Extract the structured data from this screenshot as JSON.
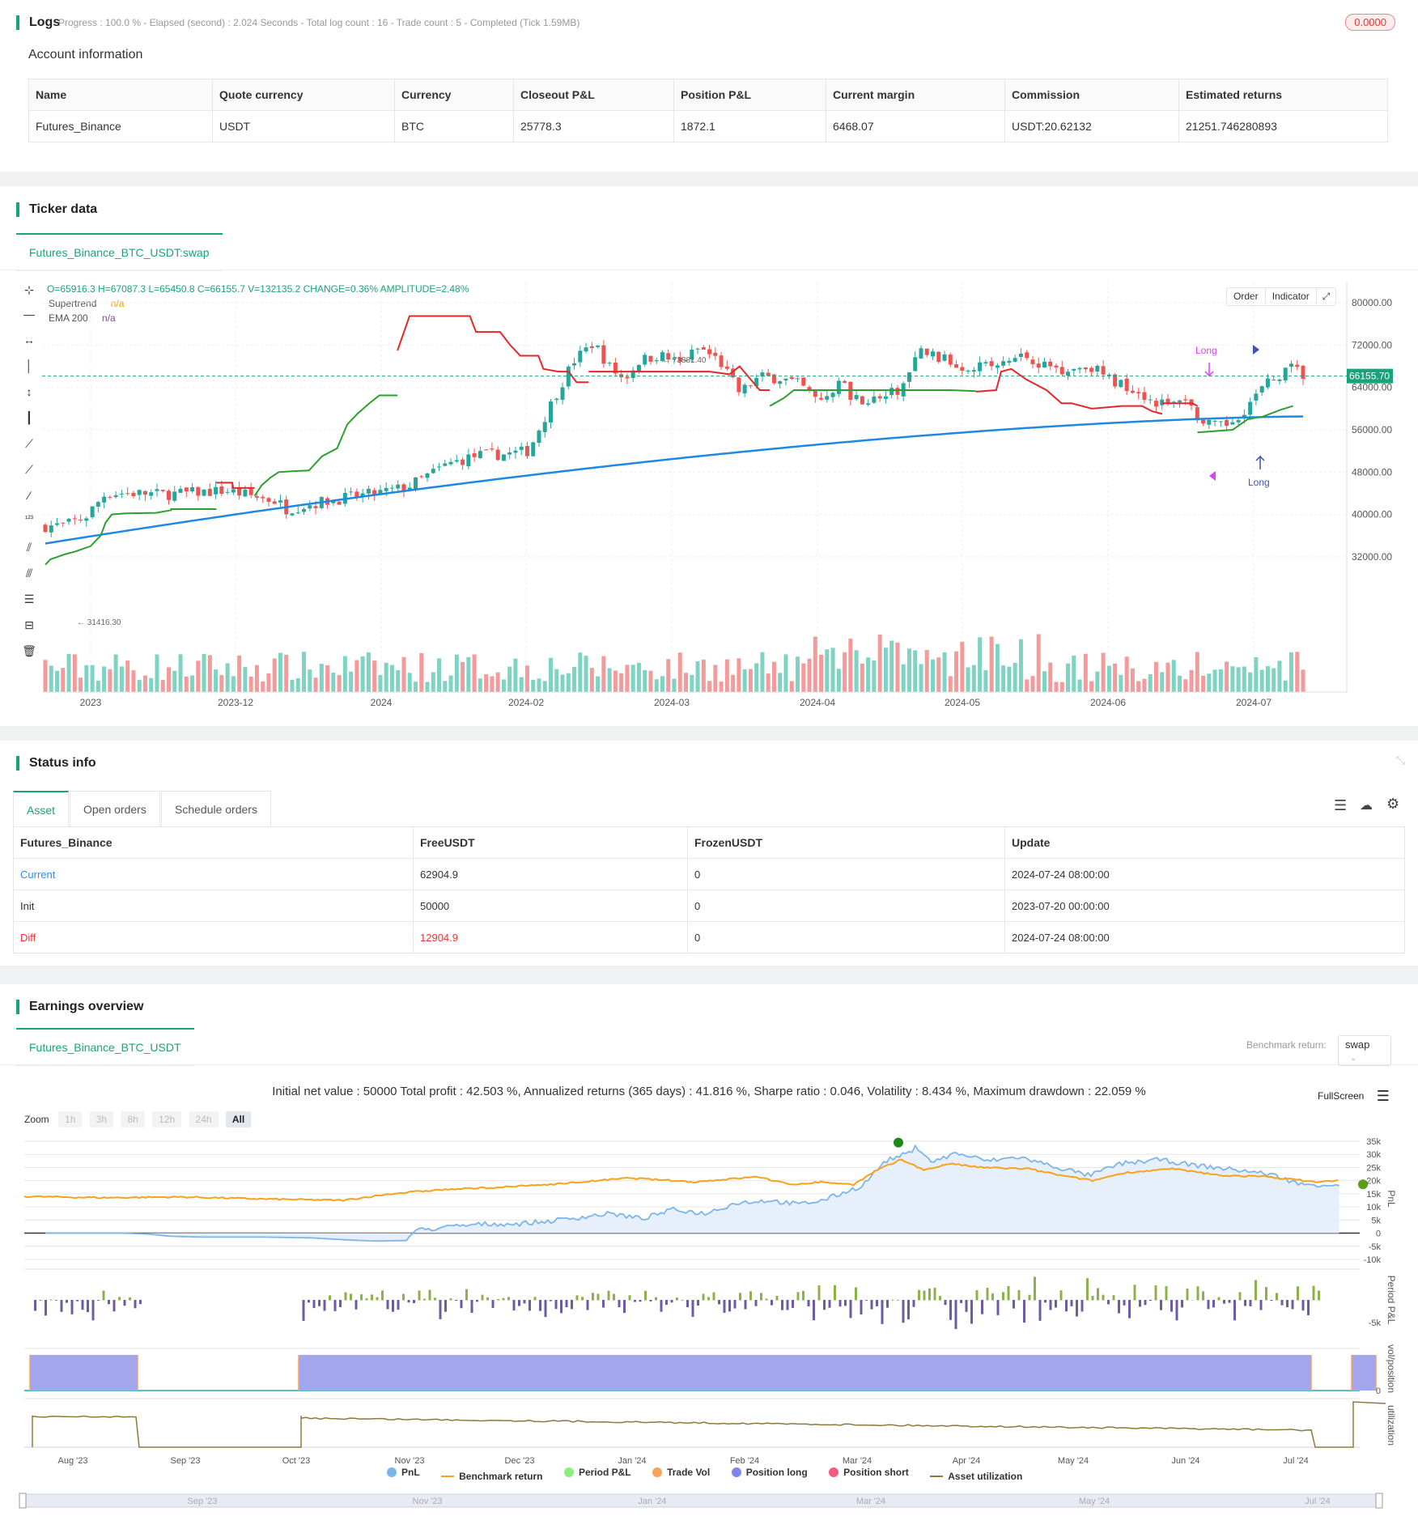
{
  "logs": {
    "title": "Logs",
    "status": "Progress : 100.0 % - Elapsed (second) : 2.024  Seconds - Total log count : 16 - Trade count : 5 - Completed (Tick 1.59MB)",
    "badge": "0.0000"
  },
  "account": {
    "title": "Account information",
    "headers": [
      "Name",
      "Quote currency",
      "Currency",
      "Closeout P&L",
      "Position P&L",
      "Current margin",
      "Commission",
      "Estimated returns"
    ],
    "row": [
      "Futures_Binance",
      "USDT",
      "BTC",
      "25778.3",
      "1872.1",
      "6468.07",
      "USDT:20.62132",
      "21251.746280893"
    ]
  },
  "ticker": {
    "title": "Ticker data",
    "tab": "Futures_Binance_BTC_USDT:swap",
    "ohlc": "O=65916.3 H=67087.3 L=65450.8 C=66155.7 V=132135.2 CHANGE=0.36% AMPLITUDE=2.48%",
    "supertrend_label": "Supertrend",
    "supertrend_val": "n/a",
    "ema_label": "EMA 200",
    "ema_val": "n/a",
    "order_btn": "Order",
    "indicator_btn": "Indicator",
    "last_price": "66155.70",
    "high_note": "73881.40",
    "low_note": "31416.30",
    "long_label": "Long",
    "y_ticks": [
      "80000.00",
      "72000.00",
      "64000.00",
      "56000.00",
      "48000.00",
      "40000.00",
      "32000.00"
    ],
    "x_ticks": [
      "2023",
      "2023-12",
      "2024",
      "2024-02",
      "2024-03",
      "2024-04",
      "2024-05",
      "2024-06",
      "2024-07"
    ],
    "colors": {
      "up": "#26a69a",
      "down": "#ef5350",
      "st_up": "#2ca02c",
      "st_down": "#e8262a",
      "ema": "#1e88e5"
    }
  },
  "status": {
    "title": "Status info",
    "tabs": [
      "Asset",
      "Open orders",
      "Schedule orders"
    ],
    "headers": [
      "Futures_Binance",
      "FreeUSDT",
      "FrozenUSDT",
      "Update"
    ],
    "rows": [
      [
        "Current",
        "62904.9",
        "0",
        "2024-07-24 08:00:00"
      ],
      [
        "Init",
        "50000",
        "0",
        "2023-07-20 00:00:00"
      ],
      [
        "Diff",
        "12904.9",
        "0",
        "2024-07-24 08:00:00"
      ]
    ]
  },
  "earnings": {
    "title": "Earnings overview",
    "tab": "Futures_Binance_BTC_USDT",
    "benchmark_label": "Benchmark return:",
    "benchmark_value": "swap",
    "summary": "Initial net value : 50000 Total profit : 42.503 %, Annualized returns (365 days) : 41.816 %, Sharpe ratio : 0.046, Volatility : 8.434 %, Maximum drawdown : 22.059 %",
    "fullscreen": "FullScreen",
    "zoom_label": "Zoom",
    "zoom_options": [
      "1h",
      "3h",
      "8h",
      "12h",
      "24h",
      "All"
    ],
    "pnl_ticks": [
      "35k",
      "30k",
      "25k",
      "20k",
      "15k",
      "10k",
      "5k",
      "0",
      "-5k",
      "-10k"
    ],
    "axis_titles": [
      "PnL",
      "Period P&L",
      "vol/position",
      "utilization"
    ],
    "period_tick": "-5k",
    "pos_tick": "0",
    "x_ticks": [
      "Aug '23",
      "Sep '23",
      "Oct '23",
      "Nov '23",
      "Dec '23",
      "Jan '24",
      "Feb '24",
      "Mar '24",
      "Apr '24",
      "May '24",
      "Jun '24",
      "Jul '24"
    ],
    "nav_ticks": [
      "Sep '23",
      "Nov '23",
      "Jan '24",
      "Mar '24",
      "May '24",
      "Jul '24"
    ],
    "legend": [
      {
        "label": "PnL",
        "color": "#7cb5ec",
        "kind": "dot"
      },
      {
        "label": "Benchmark return",
        "color": "#f7a21b",
        "kind": "line"
      },
      {
        "label": "Period P&L",
        "color": "#90ed7d",
        "kind": "dot"
      },
      {
        "label": "Trade Vol",
        "color": "#f7a35c",
        "kind": "dot"
      },
      {
        "label": "Position long",
        "color": "#8085e9",
        "kind": "dot"
      },
      {
        "label": "Position short",
        "color": "#f15c80",
        "kind": "dot"
      },
      {
        "label": "Asset utilization",
        "color": "#8d7a3a",
        "kind": "line"
      }
    ]
  },
  "chart_data": {
    "type": "candlestick",
    "title": "",
    "y_range": [
      28000,
      84000
    ],
    "last_price": 66155.7,
    "ema200_start": 34500,
    "ema200_end": 58500
  }
}
